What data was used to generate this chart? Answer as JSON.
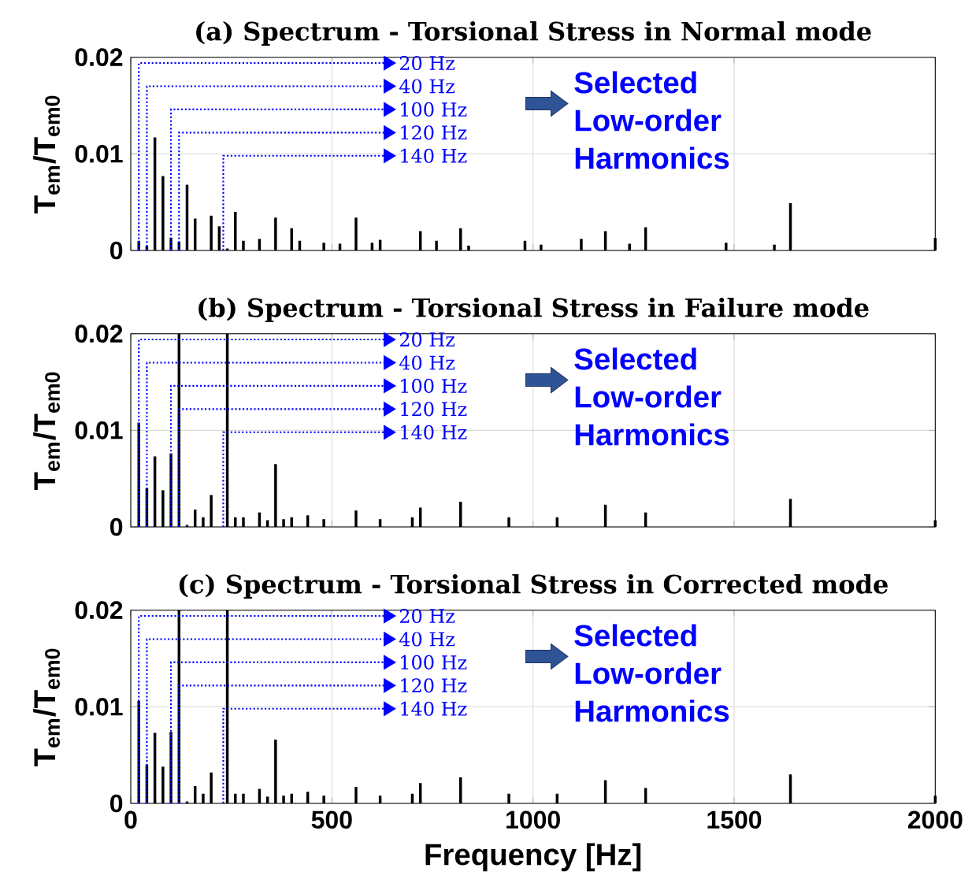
{
  "chart_data": [
    {
      "type": "bar",
      "title": "(a) Spectrum - Torsional Stress in Normal mode",
      "ylabel": "T$_{em}$/T$_{em0}$",
      "color": "#000000",
      "xlim": [
        0,
        2000
      ],
      "ylim": [
        0,
        0.02
      ],
      "xticks": [
        0,
        500,
        1000,
        1500,
        2000
      ],
      "yticks": [
        0,
        0.01,
        0.02
      ],
      "grid": true,
      "tick_labels": "y",
      "x": [
        20,
        40,
        60,
        80,
        100,
        120,
        140,
        160,
        200,
        220,
        240,
        260,
        280,
        320,
        360,
        400,
        420,
        480,
        520,
        560,
        600,
        620,
        720,
        760,
        820,
        840,
        980,
        1020,
        1120,
        1180,
        1240,
        1280,
        1480,
        1600,
        1640,
        2000
      ],
      "values": [
        0.001,
        0.0005,
        0.0117,
        0.0077,
        0.0013,
        0.0009,
        0.0068,
        0.0033,
        0.0036,
        0.0025,
        0.0002,
        0.004,
        0.001,
        0.0012,
        0.0034,
        0.0023,
        0.001,
        0.0008,
        0.0007,
        0.0034,
        0.0008,
        0.0011,
        0.002,
        0.001,
        0.0023,
        0.0005,
        0.001,
        0.0006,
        0.0012,
        0.002,
        0.0007,
        0.0024,
        0.0008,
        0.0006,
        0.0049,
        0.0013
      ],
      "annotations": [
        "20 Hz",
        "40 Hz",
        "100 Hz",
        "120 Hz",
        "140 Hz",
        "Selected Low-order Harmonics"
      ]
    },
    {
      "type": "bar",
      "title": "(b) Spectrum - Torsional Stress in Failure mode",
      "ylabel": "T$_{em}$/T$_{em0}$",
      "color": "#000000",
      "xlim": [
        0,
        2000
      ],
      "ylim": [
        0,
        0.02
      ],
      "xticks": [
        0,
        500,
        1000,
        1500,
        2000
      ],
      "yticks": [
        0,
        0.01,
        0.02
      ],
      "grid": true,
      "tick_labels": "y",
      "x": [
        20,
        40,
        60,
        80,
        100,
        120,
        140,
        160,
        180,
        200,
        240,
        260,
        280,
        320,
        340,
        360,
        380,
        400,
        440,
        480,
        560,
        620,
        700,
        720,
        820,
        940,
        1060,
        1180,
        1280,
        1640,
        2000
      ],
      "values": [
        0.0108,
        0.004,
        0.0073,
        0.0038,
        0.0076,
        0.02,
        0.0002,
        0.0018,
        0.001,
        0.0033,
        0.02,
        0.001,
        0.001,
        0.0015,
        0.0007,
        0.0065,
        0.0008,
        0.001,
        0.0012,
        0.0008,
        0.0017,
        0.0008,
        0.001,
        0.002,
        0.0026,
        0.001,
        0.001,
        0.0023,
        0.0015,
        0.0029,
        0.0007
      ],
      "annotations": [
        "20 Hz",
        "40 Hz",
        "100 Hz",
        "120 Hz",
        "140 Hz",
        "Selected Low-order Harmonics"
      ]
    },
    {
      "type": "bar",
      "title": "(c) Spectrum - Torsional Stress in Corrected mode",
      "ylabel": "T$_{em}$/T$_{em0}$",
      "xlabel": "Frequency [Hz]",
      "color": "#000000",
      "xlim": [
        0,
        2000
      ],
      "ylim": [
        0,
        0.02
      ],
      "xticks": [
        0,
        500,
        1000,
        1500,
        2000
      ],
      "yticks": [
        0,
        0.01,
        0.02
      ],
      "grid": true,
      "x": [
        20,
        40,
        60,
        80,
        100,
        120,
        140,
        160,
        180,
        200,
        240,
        260,
        280,
        320,
        340,
        360,
        380,
        400,
        440,
        480,
        560,
        620,
        700,
        720,
        820,
        940,
        1060,
        1180,
        1280,
        1640,
        2000
      ],
      "values": [
        0.0106,
        0.004,
        0.0073,
        0.0038,
        0.0074,
        0.02,
        0.0002,
        0.0018,
        0.001,
        0.0032,
        0.02,
        0.001,
        0.001,
        0.0015,
        0.0007,
        0.0066,
        0.0008,
        0.001,
        0.0012,
        0.0008,
        0.0017,
        0.0008,
        0.001,
        0.0021,
        0.0027,
        0.001,
        0.001,
        0.0024,
        0.0016,
        0.003,
        0.0008
      ],
      "annotations": [
        "20 Hz",
        "40 Hz",
        "100 Hz",
        "120 Hz",
        "140 Hz",
        "Selected Low-order Harmonics"
      ]
    }
  ]
}
